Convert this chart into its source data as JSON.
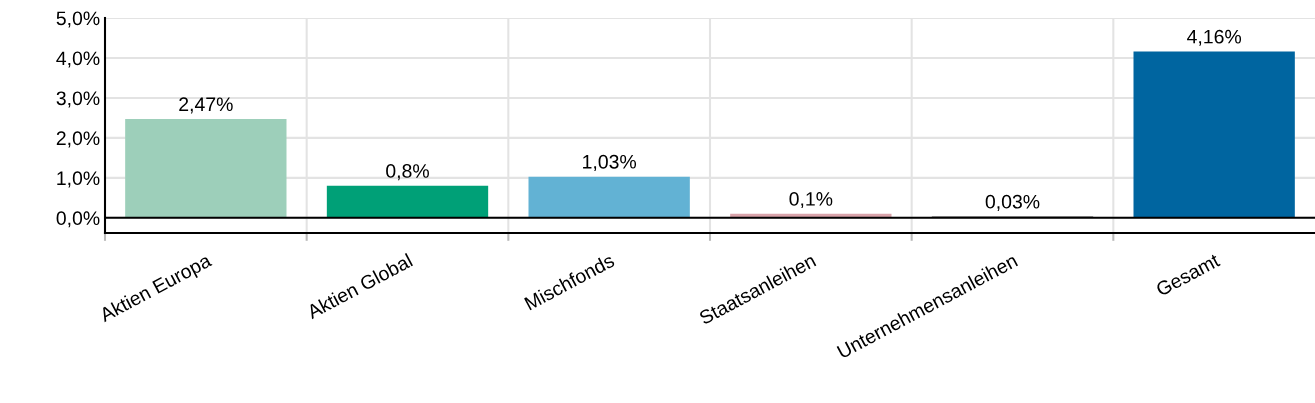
{
  "chart_data": {
    "type": "bar",
    "categories": [
      "Aktien Europa",
      "Aktien Global",
      "Mischfonds",
      "Staatsanleihen",
      "Unternehmensanleihen",
      "Gesamt"
    ],
    "values": [
      2.47,
      0.8,
      1.03,
      0.1,
      0.03,
      4.16
    ],
    "colors": [
      "#9dcfba",
      "#00a077",
      "#62b2d4",
      "#d9a3aa",
      "#4a4a4a",
      "#0065a0"
    ],
    "value_labels": [
      "2,47%",
      "0,8%",
      "1,03%",
      "0,1%",
      "0,03%",
      "4,16%"
    ],
    "ylim": [
      -0.38,
      5.0
    ],
    "yticks": [
      {
        "value": 0,
        "label": "0,0%"
      },
      {
        "value": 1,
        "label": "1,0%"
      },
      {
        "value": 2,
        "label": "2,0%"
      },
      {
        "value": 3,
        "label": "3,0%"
      },
      {
        "value": 4,
        "label": "4,0%"
      },
      {
        "value": 5,
        "label": "5,0%"
      }
    ],
    "ref_lines": [
      {
        "axis": "y",
        "value": 0,
        "color": "#000000"
      }
    ],
    "grid": true,
    "legend": false
  }
}
